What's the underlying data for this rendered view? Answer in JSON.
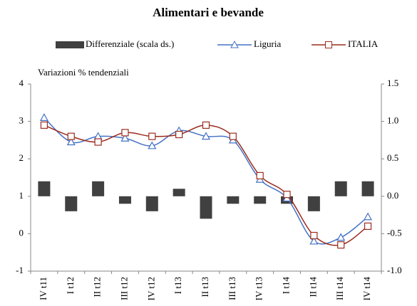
{
  "chart_data": {
    "type": "bar_line",
    "title": "Alimentari e bevande",
    "subtitle": "Variazioni % tendenziali",
    "categories": [
      "IV t11",
      "I t12",
      "II t12",
      "III t12",
      "IV t12",
      "I t13",
      "II t13",
      "III t13",
      "IV t13",
      "I t14",
      "II t14",
      "III t14",
      "IV t14"
    ],
    "series": [
      {
        "name": "Differenziale (scala ds.)",
        "type": "bar",
        "axis": "y2",
        "color": "#404040",
        "values": [
          0.2,
          -0.2,
          0.2,
          -0.1,
          -0.2,
          0.1,
          -0.3,
          -0.1,
          -0.1,
          -0.1,
          -0.2,
          0.2,
          0.2
        ]
      },
      {
        "name": "Liguria",
        "type": "line",
        "marker": "triangle",
        "color": "#4472c4",
        "values": [
          3.1,
          2.45,
          2.6,
          2.55,
          2.35,
          2.75,
          2.6,
          2.5,
          1.45,
          0.95,
          -0.2,
          -0.1,
          0.45
        ]
      },
      {
        "name": "ITALIA",
        "type": "line",
        "marker": "square",
        "color": "#9b2d1f",
        "values": [
          2.9,
          2.6,
          2.45,
          2.7,
          2.6,
          2.65,
          2.9,
          2.6,
          1.55,
          1.05,
          -0.05,
          -0.3,
          0.2
        ]
      }
    ],
    "ylim": [
      -1,
      4
    ],
    "yticks": [
      -1,
      0,
      1,
      2,
      3,
      4
    ],
    "y2lim": [
      -1,
      1.5
    ],
    "y2ticks": [
      {
        "value": -1,
        "label": "-1.0"
      },
      -0.5,
      {
        "value": 0,
        "label": "0.0"
      },
      0.5,
      {
        "value": 1,
        "label": "1.0"
      },
      1.5
    ],
    "legend": "top",
    "grid": false
  }
}
